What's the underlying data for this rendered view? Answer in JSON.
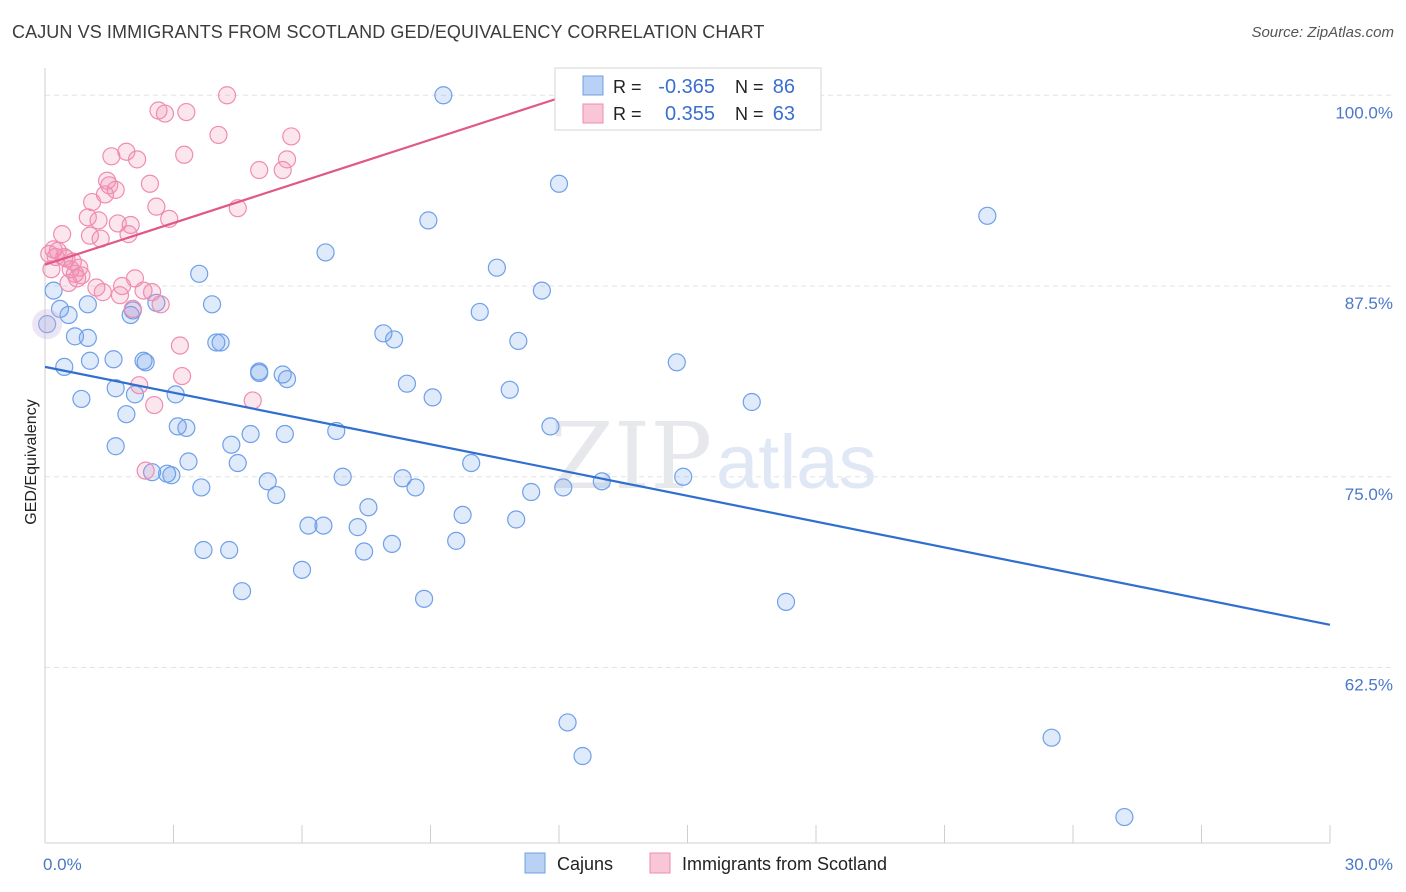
{
  "header": {
    "title": "CAJUN VS IMMIGRANTS FROM SCOTLAND GED/EQUIVALENCY CORRELATION CHART",
    "source": "Source: ZipAtlas.com"
  },
  "watermark": {
    "zip": "ZIP",
    "atlas": "atlas"
  },
  "chart_data": {
    "type": "scatter",
    "title": "CAJUN VS IMMIGRANTS FROM SCOTLAND GED/EQUIVALENCY CORRELATION CHART",
    "ylabel": "GED/Equivalency",
    "xlabel": "",
    "xlim": [
      0,
      30
    ],
    "ylim": [
      51,
      101
    ],
    "y_ticks": [
      62.5,
      75.0,
      87.5,
      100.0
    ],
    "y_tick_labels": [
      "62.5%",
      "75.0%",
      "87.5%",
      "100.0%"
    ],
    "x_tick_labels": [
      "0.0%",
      "30.0%"
    ],
    "grid": true,
    "legend_placement": "top-center",
    "stats": [
      {
        "r_label": "R =",
        "r": "-0.365",
        "n_label": "N =",
        "n": "86"
      },
      {
        "r_label": "R =",
        "r": "0.355",
        "n_label": "N =",
        "n": "63"
      }
    ],
    "series": [
      {
        "name": "Cajuns",
        "color": "#6fa0e8",
        "line_color": "#2f6fd0",
        "trend": {
          "x": [
            0,
            30
          ],
          "y": [
            82.2,
            65.3
          ]
        },
        "points": [
          [
            0.05,
            85.0
          ],
          [
            0.2,
            87.2
          ],
          [
            0.35,
            86.0
          ],
          [
            0.45,
            82.2
          ],
          [
            0.55,
            85.6
          ],
          [
            0.7,
            84.2
          ],
          [
            0.85,
            80.1
          ],
          [
            1.0,
            86.3
          ],
          [
            1.0,
            84.1
          ],
          [
            1.05,
            82.6
          ],
          [
            1.6,
            82.7
          ],
          [
            1.65,
            80.8
          ],
          [
            1.65,
            77.0
          ],
          [
            1.9,
            79.1
          ],
          [
            2.05,
            85.9
          ],
          [
            2.0,
            85.6
          ],
          [
            2.1,
            80.4
          ],
          [
            2.3,
            82.6
          ],
          [
            2.35,
            82.5
          ],
          [
            2.5,
            75.3
          ],
          [
            2.6,
            86.4
          ],
          [
            2.85,
            75.2
          ],
          [
            2.95,
            75.1
          ],
          [
            3.05,
            80.4
          ],
          [
            3.1,
            78.3
          ],
          [
            3.3,
            78.2
          ],
          [
            3.35,
            76.0
          ],
          [
            3.6,
            88.3
          ],
          [
            3.65,
            74.3
          ],
          [
            3.7,
            70.2
          ],
          [
            3.9,
            86.3
          ],
          [
            4.0,
            83.8
          ],
          [
            4.1,
            83.8
          ],
          [
            4.3,
            70.2
          ],
          [
            4.35,
            77.1
          ],
          [
            4.5,
            75.9
          ],
          [
            4.6,
            67.5
          ],
          [
            4.8,
            77.8
          ],
          [
            5.0,
            81.8
          ],
          [
            5.0,
            81.9
          ],
          [
            5.2,
            74.7
          ],
          [
            5.4,
            73.8
          ],
          [
            5.55,
            81.7
          ],
          [
            5.6,
            77.8
          ],
          [
            5.65,
            81.4
          ],
          [
            6.0,
            68.9
          ],
          [
            6.15,
            71.8
          ],
          [
            6.5,
            71.8
          ],
          [
            6.55,
            89.7
          ],
          [
            6.8,
            78.0
          ],
          [
            6.95,
            75.0
          ],
          [
            7.3,
            71.7
          ],
          [
            7.45,
            70.1
          ],
          [
            7.55,
            73.0
          ],
          [
            7.9,
            84.4
          ],
          [
            8.1,
            70.6
          ],
          [
            8.15,
            84.0
          ],
          [
            8.35,
            74.9
          ],
          [
            8.45,
            81.1
          ],
          [
            8.65,
            74.3
          ],
          [
            8.85,
            67.0
          ],
          [
            8.95,
            91.8
          ],
          [
            9.05,
            80.2
          ],
          [
            9.3,
            100.0
          ],
          [
            9.6,
            70.8
          ],
          [
            9.75,
            72.5
          ],
          [
            9.95,
            75.9
          ],
          [
            10.15,
            85.8
          ],
          [
            10.55,
            88.7
          ],
          [
            10.85,
            80.7
          ],
          [
            11.0,
            72.2
          ],
          [
            11.05,
            83.9
          ],
          [
            11.35,
            74.0
          ],
          [
            11.6,
            87.2
          ],
          [
            11.8,
            78.3
          ],
          [
            12.0,
            94.2
          ],
          [
            12.1,
            74.3
          ],
          [
            12.2,
            58.9
          ],
          [
            12.55,
            56.7
          ],
          [
            13.0,
            74.7
          ],
          [
            14.75,
            82.5
          ],
          [
            14.9,
            75.0
          ],
          [
            16.5,
            79.9
          ],
          [
            17.3,
            66.8
          ],
          [
            22.0,
            92.1
          ],
          [
            23.5,
            57.9
          ],
          [
            25.2,
            52.7
          ]
        ]
      },
      {
        "name": "Immigrants from Scotland",
        "color": "#f08cb0",
        "line_color": "#e05888",
        "trend": {
          "x": [
            0,
            12.2
          ],
          "y": [
            88.9,
            100.0
          ]
        },
        "points": [
          [
            0.1,
            89.6
          ],
          [
            0.15,
            88.6
          ],
          [
            0.2,
            89.9
          ],
          [
            0.25,
            89.4
          ],
          [
            0.3,
            89.8
          ],
          [
            0.4,
            90.9
          ],
          [
            0.45,
            89.4
          ],
          [
            0.5,
            89.3
          ],
          [
            0.55,
            87.7
          ],
          [
            0.6,
            88.6
          ],
          [
            0.65,
            89.1
          ],
          [
            0.7,
            88.3
          ],
          [
            0.75,
            88.0
          ],
          [
            0.8,
            88.7
          ],
          [
            0.85,
            88.2
          ],
          [
            1.0,
            92.0
          ],
          [
            1.05,
            90.8
          ],
          [
            1.1,
            93.0
          ],
          [
            1.2,
            87.4
          ],
          [
            1.25,
            91.8
          ],
          [
            1.3,
            90.6
          ],
          [
            1.35,
            87.1
          ],
          [
            1.4,
            93.5
          ],
          [
            1.45,
            94.4
          ],
          [
            1.5,
            94.1
          ],
          [
            1.55,
            96.0
          ],
          [
            1.65,
            93.8
          ],
          [
            1.7,
            91.6
          ],
          [
            1.75,
            86.9
          ],
          [
            1.8,
            87.5
          ],
          [
            1.9,
            96.3
          ],
          [
            1.95,
            90.9
          ],
          [
            2.0,
            91.5
          ],
          [
            2.05,
            86.0
          ],
          [
            2.1,
            88.0
          ],
          [
            2.15,
            95.8
          ],
          [
            2.2,
            81.0
          ],
          [
            2.3,
            87.2
          ],
          [
            2.35,
            75.4
          ],
          [
            2.45,
            94.2
          ],
          [
            2.5,
            87.1
          ],
          [
            2.55,
            79.7
          ],
          [
            2.6,
            92.7
          ],
          [
            2.65,
            99.0
          ],
          [
            2.7,
            86.3
          ],
          [
            2.8,
            98.8
          ],
          [
            2.9,
            91.9
          ],
          [
            3.15,
            83.6
          ],
          [
            3.2,
            81.6
          ],
          [
            3.25,
            96.1
          ],
          [
            3.3,
            98.9
          ],
          [
            4.05,
            97.4
          ],
          [
            4.25,
            100.0
          ],
          [
            4.5,
            92.6
          ],
          [
            4.85,
            80.0
          ],
          [
            5.0,
            95.1
          ],
          [
            5.55,
            95.1
          ],
          [
            5.65,
            95.8
          ],
          [
            5.75,
            97.3
          ],
          [
            12.2,
            100.0
          ]
        ]
      }
    ]
  }
}
